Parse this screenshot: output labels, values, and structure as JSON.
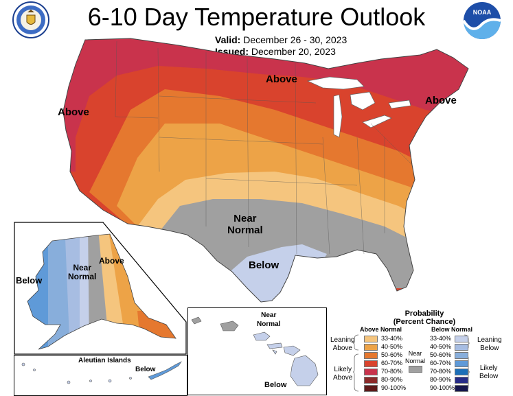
{
  "title": "6-10 Day Temperature Outlook",
  "valid": {
    "label": "Valid:",
    "value": "December 26 - 30, 2023"
  },
  "issued": {
    "label": "Issued:",
    "value": "December 20, 2023"
  },
  "logos": {
    "doc": "department-of-commerce-seal",
    "noaa": "NOAA"
  },
  "colors": {
    "above": [
      "#f5c57e",
      "#eda347",
      "#e5782f",
      "#d9432d",
      "#c9334c",
      "#8b2a2a",
      "#5d1a1a"
    ],
    "below": [
      "#c5d0ea",
      "#a7bde2",
      "#88aedb",
      "#5f9ad8",
      "#1d6fb8",
      "#262b87",
      "#16164c"
    ],
    "near_normal": "#a0a0a0"
  },
  "map_labels": {
    "above_west": "Above",
    "above_north": "Above",
    "above_northeast": "Above",
    "near_normal": [
      "Near",
      "Normal"
    ],
    "below_texas": "Below",
    "ak_below": "Below",
    "ak_near_normal": [
      "Near",
      "Normal"
    ],
    "ak_above": "Above",
    "hi_near_normal": [
      "Near",
      "Normal"
    ],
    "hi_below": "Below",
    "aleutian_title": "Aleutian Islands",
    "aleutian_below": "Below"
  },
  "legend": {
    "title": [
      "Probability",
      "(Percent Chance)"
    ],
    "above_head": "Above Normal",
    "below_head": "Below Normal",
    "near_normal": [
      "Near",
      "Normal"
    ],
    "leaning_above": [
      "Leaning",
      "Above"
    ],
    "likely_above": [
      "Likely",
      "Above"
    ],
    "leaning_below": [
      "Leaning",
      "Below"
    ],
    "likely_below": [
      "Likely",
      "Below"
    ],
    "ranges": [
      "33-40%",
      "40-50%",
      "50-60%",
      "60-70%",
      "70-80%",
      "80-90%",
      "90-100%"
    ]
  }
}
